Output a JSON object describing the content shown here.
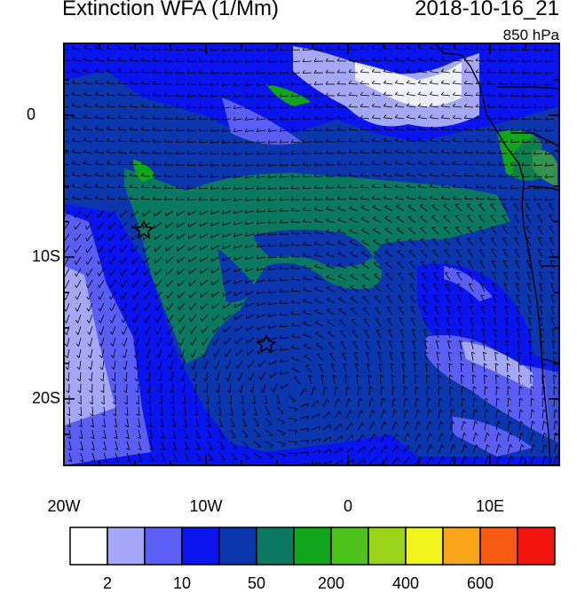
{
  "title": "Extinction WFA (1/Mm)",
  "datetime": "2018-10-16_21",
  "level": "850 hPa",
  "lat_labels": [
    "0",
    "10S",
    "20S"
  ],
  "lon_labels": [
    "20W",
    "10W",
    "0",
    "10E"
  ],
  "colorbar": {
    "colors": [
      "#ffffff",
      "#a5a8f7",
      "#5a5ef5",
      "#0a14ee",
      "#0b36ae",
      "#0b7960",
      "#10a51a",
      "#4cc21a",
      "#9ad419",
      "#f2f31a",
      "#f9a519",
      "#f85a14",
      "#f4140e"
    ],
    "labels": [
      "2",
      "10",
      "50",
      "200",
      "400",
      "600"
    ]
  },
  "markers": [
    "star",
    "star"
  ]
}
